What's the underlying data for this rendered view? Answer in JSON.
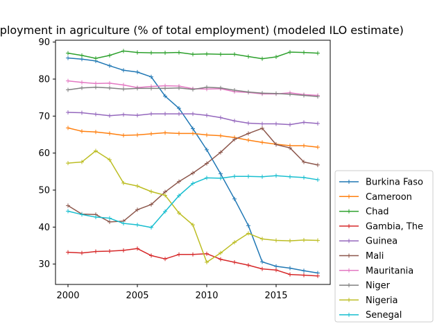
{
  "chart_data": {
    "type": "line",
    "title": "Employment in agriculture (% of total employment) (modeled ILO estimate)",
    "xlabel": "",
    "ylabel": "",
    "xlim": [
      1999.1,
      2018.9
    ],
    "ylim": [
      24.5,
      90.5
    ],
    "xticks": [
      2000,
      2005,
      2010,
      2015
    ],
    "yticks": [
      30,
      40,
      50,
      60,
      70,
      80,
      90
    ],
    "grid": false,
    "legend_position": "outside-right-bottom",
    "x": [
      2000,
      2001,
      2002,
      2003,
      2004,
      2005,
      2006,
      2007,
      2008,
      2009,
      2010,
      2011,
      2012,
      2013,
      2014,
      2015,
      2016,
      2017,
      2018
    ],
    "series": [
      {
        "name": "Burkina Faso",
        "color": "#1f77b4",
        "values": [
          85.7,
          85.4,
          84.9,
          83.6,
          82.4,
          81.9,
          80.6,
          75.4,
          72.1,
          66.6,
          60.9,
          54.4,
          47.6,
          40.4,
          30.6,
          29.4,
          28.9,
          28.2,
          27.6
        ]
      },
      {
        "name": "Cameroon",
        "color": "#ff7f0e",
        "values": [
          66.8,
          65.9,
          65.7,
          65.3,
          64.8,
          64.9,
          65.2,
          65.5,
          65.3,
          65.3,
          64.9,
          64.7,
          64.2,
          63.5,
          62.9,
          62.4,
          62.0,
          62.0,
          61.6
        ]
      },
      {
        "name": "Chad",
        "color": "#2ca02c",
        "values": [
          87.0,
          86.4,
          85.6,
          86.4,
          87.6,
          87.2,
          87.1,
          87.1,
          87.2,
          86.7,
          86.8,
          86.7,
          86.7,
          86.1,
          85.5,
          86.0,
          87.3,
          87.2,
          87.0
        ]
      },
      {
        "name": "Gambia, The",
        "color": "#d62728",
        "values": [
          33.2,
          33.0,
          33.4,
          33.5,
          33.7,
          34.2,
          32.3,
          31.4,
          32.6,
          32.6,
          32.8,
          31.3,
          30.5,
          29.7,
          28.7,
          28.4,
          27.2,
          27.0,
          26.8
        ]
      },
      {
        "name": "Guinea",
        "color": "#9467bd",
        "values": [
          71.0,
          70.9,
          70.5,
          70.1,
          70.4,
          70.2,
          70.6,
          70.6,
          70.6,
          70.6,
          70.2,
          69.6,
          68.7,
          68.1,
          67.9,
          67.9,
          67.7,
          68.3,
          68.0
        ]
      },
      {
        "name": "Mali",
        "color": "#8c564b",
        "values": [
          45.8,
          43.5,
          43.4,
          41.4,
          41.6,
          44.7,
          46.1,
          49.5,
          52.3,
          54.6,
          57.2,
          60.2,
          63.7,
          65.3,
          66.7,
          62.3,
          61.4,
          57.6,
          56.8
        ]
      },
      {
        "name": "Mauritania",
        "color": "#e377c2",
        "values": [
          79.5,
          79.1,
          78.8,
          78.9,
          78.4,
          77.7,
          78.0,
          78.2,
          78.1,
          77.4,
          77.3,
          77.4,
          76.6,
          76.4,
          76.0,
          76.0,
          76.3,
          75.8,
          75.6
        ]
      },
      {
        "name": "Niger",
        "color": "#7f7f7f",
        "values": [
          77.1,
          77.6,
          77.8,
          77.6,
          77.3,
          77.5,
          77.5,
          77.5,
          77.6,
          77.2,
          77.8,
          77.6,
          77.0,
          76.5,
          76.2,
          76.1,
          75.9,
          75.6,
          75.3
        ]
      },
      {
        "name": "Nigeria",
        "color": "#bcbd22",
        "values": [
          57.3,
          57.6,
          60.6,
          58.2,
          51.9,
          51.1,
          49.6,
          48.6,
          43.8,
          40.6,
          30.5,
          33.0,
          35.9,
          38.3,
          36.8,
          36.4,
          36.3,
          36.5,
          36.4
        ]
      },
      {
        "name": "Senegal",
        "color": "#17becf",
        "values": [
          44.3,
          43.4,
          42.7,
          42.4,
          41.0,
          40.6,
          39.9,
          44.2,
          48.5,
          51.8,
          53.3,
          53.2,
          53.7,
          53.7,
          53.6,
          53.9,
          53.6,
          53.4,
          52.8
        ]
      }
    ]
  }
}
